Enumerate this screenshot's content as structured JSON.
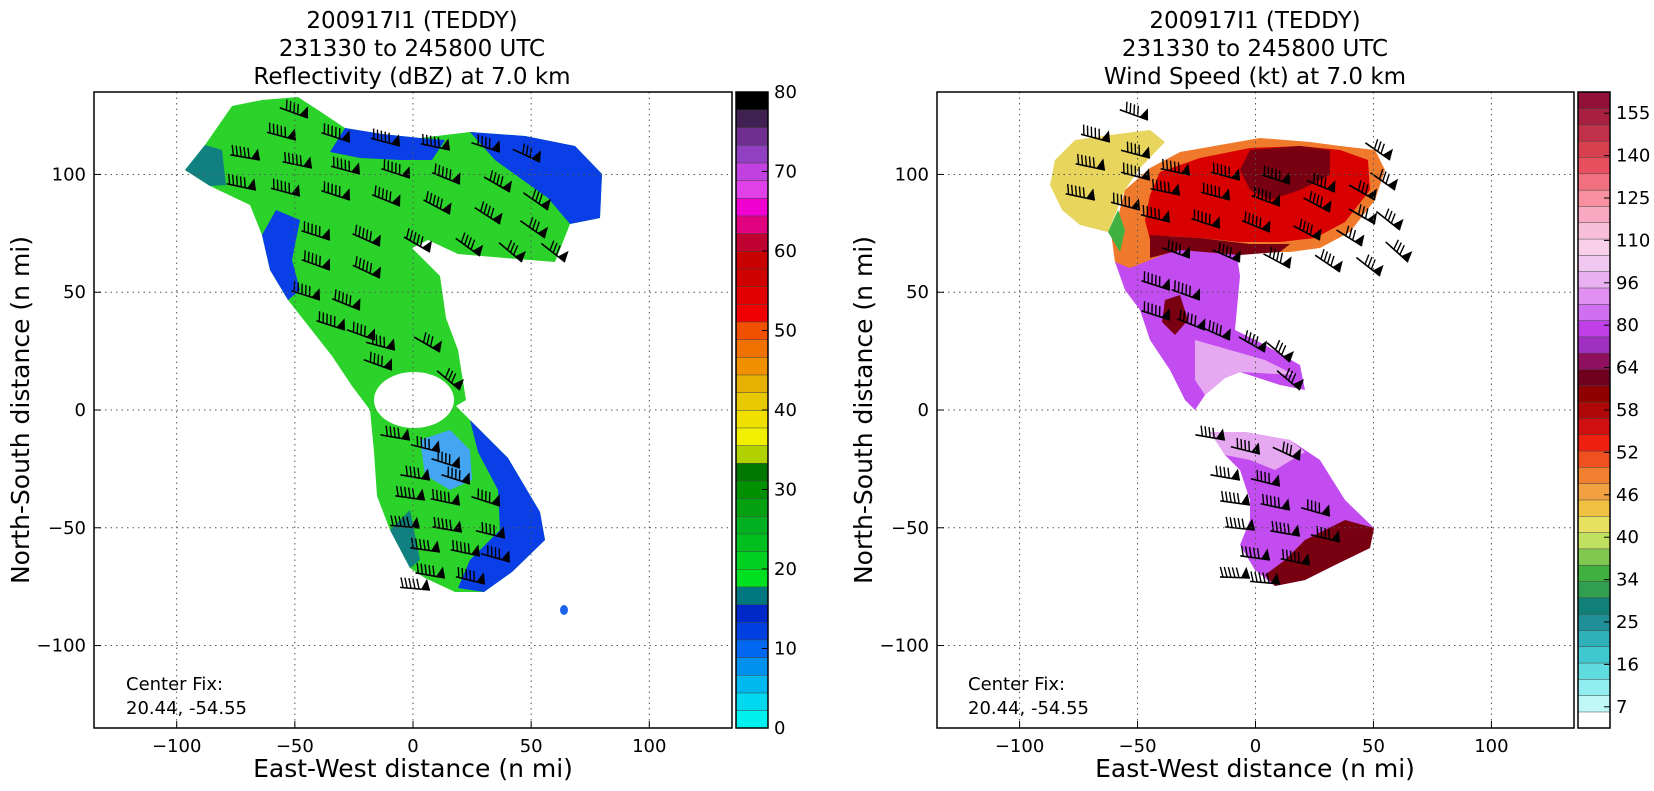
{
  "chart_data": [
    {
      "type": "heatmap",
      "title_lines": [
        "200917I1 (TEDDY)",
        "231330 to 245800 UTC",
        "Reflectivity (dBZ) at 7.0 km"
      ],
      "xlabel": "East-West distance (n mi)",
      "ylabel": "North-South distance (n mi)",
      "xlim": [
        -135,
        135
      ],
      "ylim": [
        -135,
        135
      ],
      "xticks": [
        "−100",
        "−50",
        "0",
        "50",
        "100"
      ],
      "yticks": [
        "−100",
        "−50",
        "0",
        "50",
        "100"
      ],
      "grid": "dotted",
      "annotation": [
        "Center Fix:",
        "20.44, -54.55"
      ],
      "colorbar": {
        "min": 0,
        "max": 80,
        "tick_labels": [
          "0",
          "10",
          "20",
          "30",
          "40",
          "50",
          "60",
          "70",
          "80"
        ],
        "colors": [
          "#00f0f0",
          "#00d8f0",
          "#00b8f0",
          "#0090f0",
          "#0068f0",
          "#0040e0",
          "#0028c8",
          "#007880",
          "#00e020",
          "#00d020",
          "#00c020",
          "#00b020",
          "#00a010",
          "#009000",
          "#007800",
          "#b0d000",
          "#f0f000",
          "#f0e000",
          "#e8c800",
          "#e8b000",
          "#f09000",
          "#f07000",
          "#f05000",
          "#f00000",
          "#e00000",
          "#d00000",
          "#c80000",
          "#c00030",
          "#e00080",
          "#f000d0",
          "#e040e8",
          "#c040e0",
          "#9040c0",
          "#703090",
          "#402050",
          "#000000"
        ]
      },
      "field_colors": {
        "high_green": "#40e020",
        "mid_green": "#20c030",
        "blue": "#0040e0",
        "light_blue": "#40a0f0",
        "teal": "#108080"
      }
    },
    {
      "type": "heatmap",
      "title_lines": [
        "200917I1 (TEDDY)",
        "231330 to 245800 UTC",
        "Wind Speed (kt) at 7.0 km"
      ],
      "xlabel": "East-West distance (n mi)",
      "ylabel": "North-South distance (n mi)",
      "xlim": [
        -135,
        135
      ],
      "ylim": [
        -135,
        135
      ],
      "xticks": [
        "−100",
        "−50",
        "0",
        "50",
        "100"
      ],
      "yticks": [
        "−100",
        "−50",
        "0",
        "50",
        "100"
      ],
      "grid": "dotted",
      "annotation": [
        "Center Fix:",
        "20.44, -54.55"
      ],
      "colorbar": {
        "tick_labels": [
          "7",
          "16",
          "25",
          "34",
          "40",
          "46",
          "52",
          "58",
          "64",
          "80",
          "96",
          "110",
          "125",
          "140",
          "155"
        ],
        "colors": [
          "#ffffff",
          "#c0f8f8",
          "#90eef0",
          "#60dce0",
          "#40c8d0",
          "#30b0b8",
          "#209098",
          "#108078",
          "#30a050",
          "#40b040",
          "#80c850",
          "#c0e060",
          "#e8e060",
          "#f0c040",
          "#f0a040",
          "#f08030",
          "#f05020",
          "#f02010",
          "#d01010",
          "#b00808",
          "#900000",
          "#700020",
          "#901060",
          "#a030c0",
          "#c040e8",
          "#d070f0",
          "#e090f0",
          "#e8b0f0",
          "#f0c8f0",
          "#f8d0e8",
          "#f8c0d8",
          "#f8a8c0",
          "#f890a0",
          "#f07080",
          "#e85060",
          "#d84050",
          "#c03048",
          "#a82040",
          "#901038"
        ]
      },
      "field_colors": {
        "purple": "#c050f0",
        "light_purple": "#e8a8f0",
        "red": "#d80000",
        "dark_red": "#780010",
        "orange": "#f08030",
        "yellow": "#e8d860"
      }
    }
  ]
}
